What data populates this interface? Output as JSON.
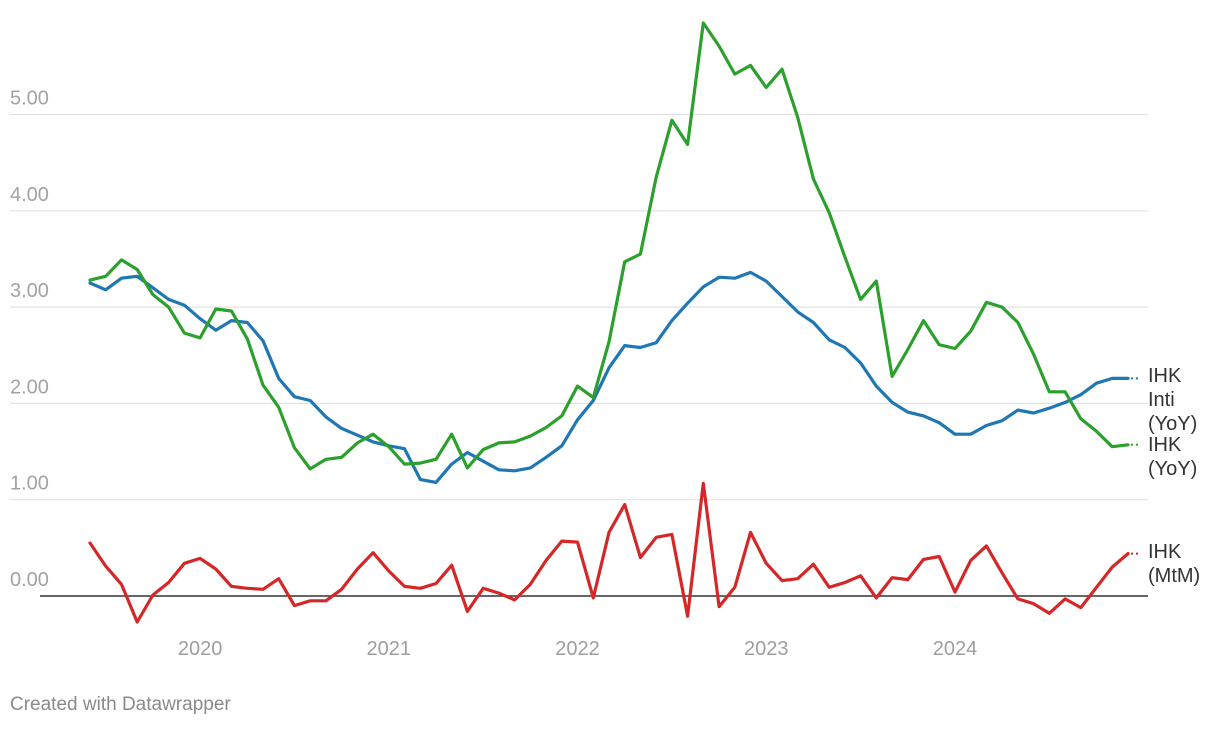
{
  "chart_data": {
    "type": "line",
    "title": "",
    "xlabel": "",
    "ylabel": "",
    "xlim": [
      2019.42,
      2024.92
    ],
    "ylim": [
      -0.3,
      5.96
    ],
    "ygrid": [
      0,
      1,
      2,
      3,
      4,
      5
    ],
    "yticks": [
      "0.00",
      "1.00",
      "2.00",
      "3.00",
      "4.00",
      "5.00"
    ],
    "xticks": [
      {
        "value": 2020.0,
        "label": "2020"
      },
      {
        "value": 2021.0,
        "label": "2021"
      },
      {
        "value": 2022.0,
        "label": "2022"
      },
      {
        "value": 2023.0,
        "label": "2023"
      },
      {
        "value": 2024.0,
        "label": "2024"
      }
    ],
    "series": [
      {
        "name": "IHK Inti (YoY)",
        "label_lines": [
          "IHK",
          "Inti",
          "(YoY)"
        ],
        "color": "#1f77b4",
        "start": 2019.4167,
        "step": 0.08333,
        "values": [
          3.25,
          3.18,
          3.3,
          3.32,
          3.2,
          3.08,
          3.02,
          2.88,
          2.76,
          2.86,
          2.84,
          2.65,
          2.26,
          2.07,
          2.03,
          1.86,
          1.74,
          1.67,
          1.6,
          1.56,
          1.53,
          1.21,
          1.18,
          1.37,
          1.49,
          1.4,
          1.31,
          1.3,
          1.33,
          1.44,
          1.56,
          1.83,
          2.03,
          2.37,
          2.6,
          2.58,
          2.63,
          2.86,
          3.04,
          3.21,
          3.31,
          3.3,
          3.36,
          3.27,
          3.11,
          2.95,
          2.84,
          2.66,
          2.58,
          2.42,
          2.18,
          2.01,
          1.91,
          1.87,
          1.8,
          1.68,
          1.68,
          1.77,
          1.82,
          1.93,
          1.9,
          1.95,
          2.01,
          2.09,
          2.21,
          2.26,
          2.26
        ]
      },
      {
        "name": "IHK (YoY)",
        "label_lines": [
          "IHK",
          "(YoY)"
        ],
        "color": "#2ca02c",
        "start": 2019.4167,
        "step": 0.08333,
        "values": [
          3.28,
          3.32,
          3.49,
          3.39,
          3.13,
          3.0,
          2.73,
          2.68,
          2.98,
          2.96,
          2.67,
          2.19,
          1.96,
          1.54,
          1.32,
          1.42,
          1.44,
          1.59,
          1.68,
          1.55,
          1.37,
          1.38,
          1.42,
          1.68,
          1.33,
          1.52,
          1.59,
          1.6,
          1.66,
          1.75,
          1.87,
          2.18,
          2.06,
          2.64,
          3.47,
          3.55,
          4.35,
          4.94,
          4.69,
          5.95,
          5.71,
          5.42,
          5.51,
          5.28,
          5.47,
          4.97,
          4.33,
          3.98,
          3.52,
          3.08,
          3.27,
          2.28,
          2.56,
          2.86,
          2.61,
          2.57,
          2.75,
          3.05,
          3.0,
          2.84,
          2.51,
          2.12,
          2.12,
          1.84,
          1.71,
          1.55,
          1.57
        ]
      },
      {
        "name": "IHK (MtM)",
        "label_lines": [
          "IHK",
          "(MtM)"
        ],
        "color": "#d62728",
        "start": 2019.4167,
        "step": 0.08333,
        "values": [
          0.55,
          0.31,
          0.12,
          -0.27,
          0.01,
          0.14,
          0.34,
          0.39,
          0.28,
          0.1,
          0.08,
          0.07,
          0.18,
          -0.1,
          -0.05,
          -0.05,
          0.07,
          0.28,
          0.45,
          0.26,
          0.1,
          0.08,
          0.13,
          0.32,
          -0.16,
          0.08,
          0.03,
          -0.04,
          0.12,
          0.37,
          0.57,
          0.56,
          -0.02,
          0.66,
          0.95,
          0.4,
          0.61,
          0.64,
          -0.21,
          1.17,
          -0.11,
          0.09,
          0.66,
          0.34,
          0.16,
          0.18,
          0.33,
          0.09,
          0.14,
          0.21,
          -0.02,
          0.19,
          0.17,
          0.38,
          0.41,
          0.04,
          0.37,
          0.52,
          0.24,
          -0.03,
          -0.08,
          -0.18,
          -0.03,
          -0.12,
          0.09,
          0.3,
          0.44
        ]
      }
    ]
  },
  "footer": {
    "credit": "Created with Datawrapper"
  }
}
